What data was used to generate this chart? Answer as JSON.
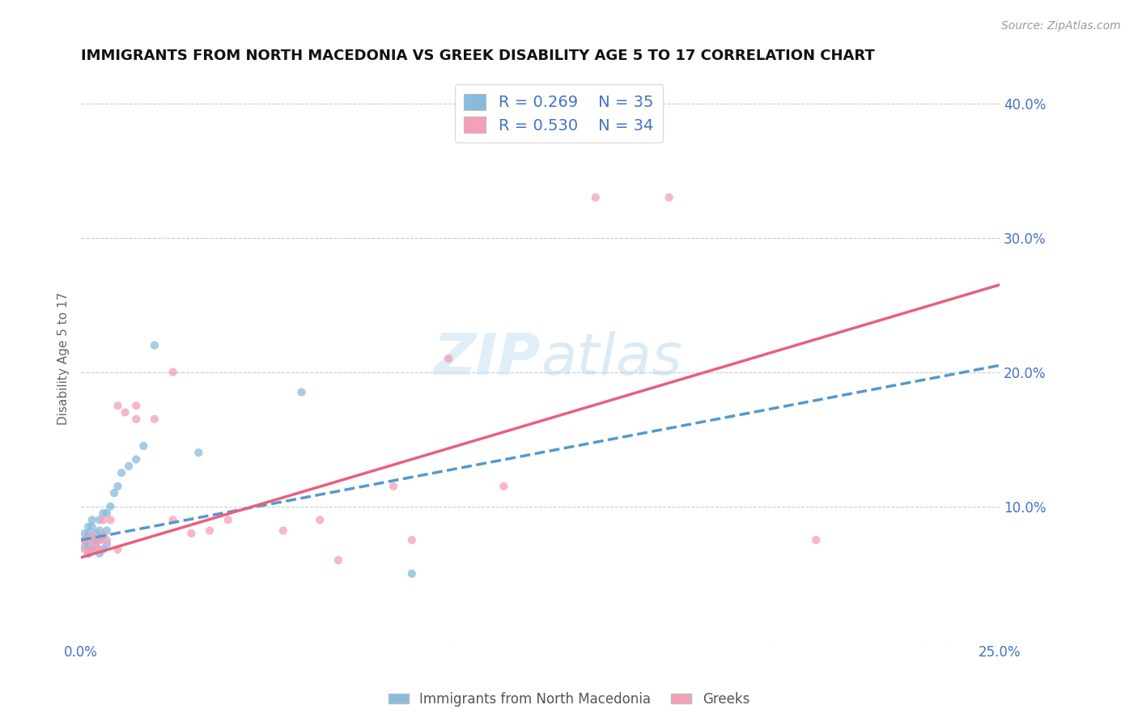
{
  "title": "IMMIGRANTS FROM NORTH MACEDONIA VS GREEK DISABILITY AGE 5 TO 17 CORRELATION CHART",
  "source_text": "Source: ZipAtlas.com",
  "ylabel": "Disability Age 5 to 17",
  "xlim": [
    0.0,
    0.25
  ],
  "ylim": [
    0.0,
    0.42
  ],
  "xticks": [
    0.0,
    0.05,
    0.1,
    0.15,
    0.2,
    0.25
  ],
  "xticklabels": [
    "0.0%",
    "",
    "",
    "",
    "",
    "25.0%"
  ],
  "yticks": [
    0.0,
    0.1,
    0.2,
    0.3,
    0.4
  ],
  "yticklabels": [
    "",
    "10.0%",
    "20.0%",
    "30.0%",
    "40.0%"
  ],
  "blue_R": 0.269,
  "blue_N": 35,
  "pink_R": 0.53,
  "pink_N": 34,
  "blue_color": "#88bbdd",
  "pink_color": "#f4a0b8",
  "trend_blue_color": "#5599cc",
  "trend_pink_color": "#e8607a",
  "blue_scatter_x": [
    0.001,
    0.001,
    0.001,
    0.002,
    0.002,
    0.002,
    0.002,
    0.003,
    0.003,
    0.003,
    0.003,
    0.004,
    0.004,
    0.004,
    0.005,
    0.005,
    0.005,
    0.005,
    0.006,
    0.006,
    0.006,
    0.007,
    0.007,
    0.007,
    0.008,
    0.009,
    0.01,
    0.011,
    0.013,
    0.015,
    0.017,
    0.02,
    0.032,
    0.06,
    0.09
  ],
  "blue_scatter_y": [
    0.07,
    0.075,
    0.08,
    0.065,
    0.07,
    0.08,
    0.085,
    0.068,
    0.075,
    0.085,
    0.09,
    0.07,
    0.075,
    0.08,
    0.065,
    0.075,
    0.082,
    0.09,
    0.068,
    0.078,
    0.095,
    0.072,
    0.082,
    0.095,
    0.1,
    0.11,
    0.115,
    0.125,
    0.13,
    0.135,
    0.145,
    0.22,
    0.14,
    0.185,
    0.05
  ],
  "pink_scatter_x": [
    0.001,
    0.001,
    0.002,
    0.002,
    0.003,
    0.003,
    0.004,
    0.005,
    0.005,
    0.006,
    0.006,
    0.007,
    0.008,
    0.01,
    0.01,
    0.012,
    0.015,
    0.015,
    0.02,
    0.025,
    0.025,
    0.03,
    0.035,
    0.04,
    0.055,
    0.065,
    0.07,
    0.085,
    0.09,
    0.1,
    0.115,
    0.14,
    0.16,
    0.2
  ],
  "pink_scatter_y": [
    0.068,
    0.075,
    0.065,
    0.075,
    0.068,
    0.078,
    0.072,
    0.068,
    0.075,
    0.078,
    0.09,
    0.075,
    0.09,
    0.068,
    0.175,
    0.17,
    0.165,
    0.175,
    0.165,
    0.09,
    0.2,
    0.08,
    0.082,
    0.09,
    0.082,
    0.09,
    0.06,
    0.115,
    0.075,
    0.21,
    0.115,
    0.33,
    0.33,
    0.075
  ],
  "legend_entries": [
    "Immigrants from North Macedonia",
    "Greeks"
  ],
  "background_color": "#ffffff",
  "grid_color": "#cccccc",
  "tick_label_color": "#4472c4",
  "title_fontsize": 13,
  "watermark_color": "#cce4f5",
  "source_color": "#999999"
}
